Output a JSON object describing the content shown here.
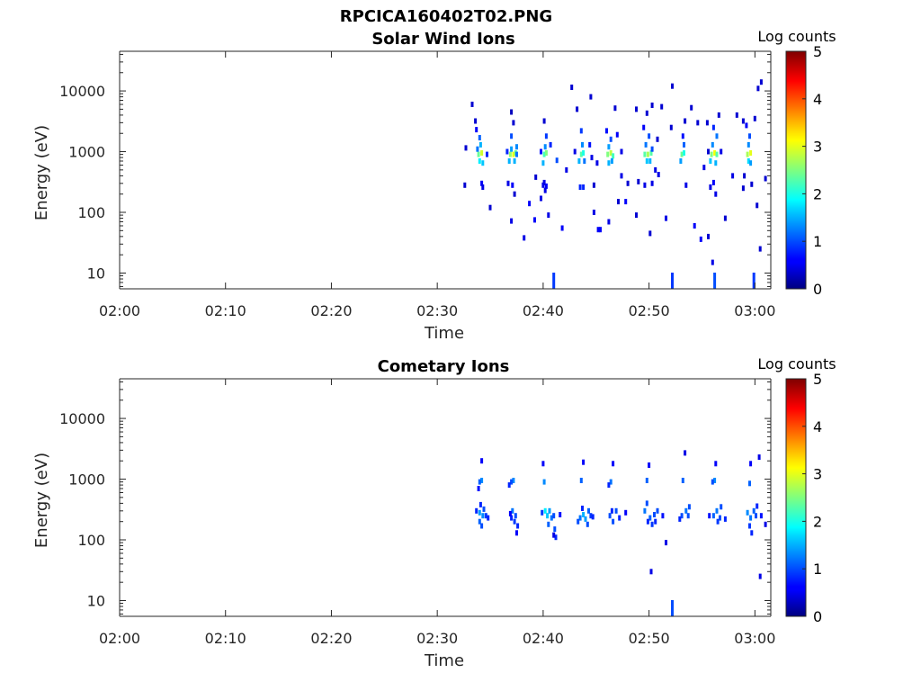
{
  "figure": {
    "filename": "RPCICA160402T02.PNG"
  },
  "chart_data": [
    {
      "type": "heatmap",
      "title": "Solar Wind Ions",
      "xlabel": "Time",
      "ylabel": "Energy (eV)",
      "x_ticks": [
        "02:00",
        "02:10",
        "02:20",
        "02:30",
        "02:40",
        "02:50",
        "03:00"
      ],
      "x_tick_minutes": [
        0,
        10,
        20,
        30,
        40,
        50,
        60
      ],
      "xlim_minutes": [
        0,
        61.5
      ],
      "y_scale": "log",
      "y_ticks": [
        "10",
        "100",
        "1000",
        "10000"
      ],
      "y_tick_values": [
        10,
        100,
        1000,
        10000
      ],
      "ylim": [
        5.5,
        45000
      ],
      "colorbar": {
        "label": "Log counts",
        "ticks": [
          "0",
          "1",
          "2",
          "3",
          "4",
          "5"
        ],
        "range": [
          0,
          5
        ],
        "colormap": "jet"
      },
      "points": [
        [
          33.9,
          900,
          2.4
        ],
        [
          34.2,
          950,
          2.9
        ],
        [
          34.0,
          700,
          1.8
        ],
        [
          34.3,
          650,
          1.6
        ],
        [
          33.8,
          1100,
          1.2
        ],
        [
          34.1,
          1300,
          1.5
        ],
        [
          34.0,
          1700,
          1.1
        ],
        [
          33.7,
          2300,
          0.6
        ],
        [
          34.2,
          300,
          0.6
        ],
        [
          34.3,
          260,
          0.5
        ],
        [
          32.6,
          280,
          0.4
        ],
        [
          32.7,
          1150,
          0.4
        ],
        [
          33.3,
          6000,
          0.4
        ],
        [
          33.6,
          3200,
          0.4
        ],
        [
          34.7,
          900,
          0.8
        ],
        [
          36.9,
          900,
          2.6
        ],
        [
          37.2,
          900,
          3.0
        ],
        [
          37.4,
          950,
          2.4
        ],
        [
          36.8,
          700,
          1.5
        ],
        [
          37.3,
          700,
          1.5
        ],
        [
          37.0,
          1100,
          1.4
        ],
        [
          37.5,
          1200,
          1.3
        ],
        [
          36.6,
          1000,
          0.8
        ],
        [
          37.0,
          1800,
          1.0
        ],
        [
          37.1,
          280,
          0.6
        ],
        [
          36.7,
          300,
          0.5
        ],
        [
          37.2,
          3000,
          0.4
        ],
        [
          37.3,
          200,
          0.4
        ],
        [
          37.0,
          4500,
          0.3
        ],
        [
          37.5,
          900,
          1.2
        ],
        [
          40.1,
          900,
          2.2
        ],
        [
          40.3,
          950,
          2.5
        ],
        [
          40.0,
          650,
          1.5
        ],
        [
          40.2,
          1200,
          1.3
        ],
        [
          40.3,
          1800,
          0.9
        ],
        [
          39.8,
          1000,
          0.7
        ],
        [
          40.1,
          3200,
          0.4
        ],
        [
          40.3,
          270,
          0.6
        ],
        [
          40.1,
          310,
          0.5
        ],
        [
          41.3,
          720,
          1.0
        ],
        [
          40.7,
          1300,
          0.8
        ],
        [
          39.3,
          380,
          0.4
        ],
        [
          40.0,
          280,
          0.5
        ],
        [
          40.2,
          230,
          0.5
        ],
        [
          39.8,
          170,
          0.5
        ],
        [
          43.6,
          900,
          2.3
        ],
        [
          43.8,
          950,
          2.0
        ],
        [
          43.4,
          700,
          1.5
        ],
        [
          43.7,
          1300,
          1.3
        ],
        [
          43.6,
          2200,
          0.9
        ],
        [
          43.9,
          700,
          1.2
        ],
        [
          43.5,
          260,
          0.8
        ],
        [
          43.8,
          260,
          0.8
        ],
        [
          44.4,
          1300,
          0.7
        ],
        [
          43.0,
          1000,
          0.5
        ],
        [
          45.1,
          650,
          0.5
        ],
        [
          44.6,
          800,
          0.5
        ],
        [
          46.1,
          900,
          2.5
        ],
        [
          46.4,
          950,
          2.8
        ],
        [
          46.6,
          850,
          2.2
        ],
        [
          46.2,
          650,
          1.5
        ],
        [
          46.5,
          700,
          1.4
        ],
        [
          46.2,
          1200,
          1.4
        ],
        [
          46.4,
          1600,
          1.0
        ],
        [
          46.0,
          2200,
          0.7
        ],
        [
          47.0,
          1900,
          0.6
        ],
        [
          47.4,
          1000,
          0.5
        ],
        [
          49.6,
          900,
          2.3
        ],
        [
          49.9,
          900,
          2.7
        ],
        [
          50.2,
          950,
          2.3
        ],
        [
          49.8,
          700,
          1.6
        ],
        [
          50.1,
          700,
          1.5
        ],
        [
          49.7,
          1300,
          1.2
        ],
        [
          50.0,
          1800,
          1.0
        ],
        [
          49.5,
          2500,
          0.6
        ],
        [
          50.3,
          1100,
          1.0
        ],
        [
          49.8,
          4300,
          0.4
        ],
        [
          49.6,
          280,
          0.5
        ],
        [
          50.3,
          300,
          0.5
        ],
        [
          50.6,
          500,
          0.5
        ],
        [
          50.9,
          420,
          0.5
        ],
        [
          53.1,
          900,
          2.4
        ],
        [
          53.3,
          950,
          2.0
        ],
        [
          53.0,
          700,
          1.4
        ],
        [
          53.3,
          1300,
          1.1
        ],
        [
          53.2,
          1800,
          0.7
        ],
        [
          53.5,
          280,
          0.5
        ],
        [
          53.4,
          3200,
          0.4
        ],
        [
          55.9,
          900,
          2.5
        ],
        [
          56.2,
          950,
          3.1
        ],
        [
          56.4,
          900,
          2.3
        ],
        [
          55.8,
          700,
          1.6
        ],
        [
          56.3,
          650,
          1.5
        ],
        [
          56.0,
          1300,
          1.3
        ],
        [
          56.4,
          1800,
          1.2
        ],
        [
          56.1,
          2500,
          0.8
        ],
        [
          56.6,
          4000,
          0.4
        ],
        [
          55.8,
          260,
          0.5
        ],
        [
          56.3,
          200,
          0.5
        ],
        [
          56.1,
          310,
          0.6
        ],
        [
          55.2,
          550,
          0.5
        ],
        [
          56.8,
          1000,
          0.5
        ],
        [
          55.5,
          3000,
          0.4
        ],
        [
          59.3,
          900,
          2.7
        ],
        [
          59.6,
          950,
          3.0
        ],
        [
          59.4,
          700,
          1.7
        ],
        [
          59.6,
          650,
          1.4
        ],
        [
          59.4,
          1300,
          1.3
        ],
        [
          59.5,
          1800,
          1.0
        ],
        [
          59.2,
          2700,
          0.6
        ],
        [
          59.0,
          400,
          0.4
        ],
        [
          59.7,
          290,
          0.4
        ],
        [
          58.9,
          3200,
          0.4
        ],
        [
          60.0,
          3500,
          0.4
        ],
        [
          60.3,
          11000,
          0.4
        ],
        [
          60.6,
          14000,
          0.4
        ],
        [
          61.0,
          360,
          0.4
        ],
        [
          35.0,
          120,
          0.4
        ],
        [
          38.7,
          140,
          0.6
        ],
        [
          39.2,
          75,
          0.6
        ],
        [
          40.5,
          90,
          0.5
        ],
        [
          41.8,
          55,
          0.6
        ],
        [
          44.8,
          100,
          0.5
        ],
        [
          45.2,
          52,
          0.6
        ],
        [
          45.4,
          52,
          0.6
        ],
        [
          46.2,
          70,
          0.5
        ],
        [
          47.8,
          150,
          0.6
        ],
        [
          48.8,
          90,
          0.4
        ],
        [
          50.1,
          45,
          0.4
        ],
        [
          51.6,
          80,
          0.5
        ],
        [
          54.3,
          60,
          0.6
        ],
        [
          54.9,
          36,
          0.6
        ],
        [
          55.6,
          40,
          0.4
        ],
        [
          56.0,
          15,
          0.5
        ],
        [
          57.2,
          80,
          0.4
        ],
        [
          60.2,
          130,
          0.4
        ],
        [
          60.5,
          25,
          0.4
        ],
        [
          38.2,
          38,
          0.5
        ],
        [
          37.0,
          72,
          0.5
        ],
        [
          42.2,
          500,
          0.5
        ],
        [
          44.8,
          280,
          0.4
        ],
        [
          47.1,
          150,
          0.4
        ],
        [
          47.4,
          400,
          0.5
        ],
        [
          48.0,
          300,
          0.4
        ],
        [
          49.0,
          320,
          0.4
        ],
        [
          50.8,
          1600,
          0.4
        ],
        [
          51.2,
          5500,
          0.4
        ],
        [
          52.2,
          12000,
          0.4
        ],
        [
          54.6,
          3000,
          0.4
        ],
        [
          55.6,
          1000,
          0.4
        ],
        [
          58.3,
          4000,
          0.4
        ],
        [
          57.9,
          400,
          0.5
        ],
        [
          58.9,
          250,
          0.4
        ],
        [
          42.7,
          11500,
          0.4
        ],
        [
          43.2,
          5000,
          0.4
        ],
        [
          44.5,
          8000,
          0.4
        ],
        [
          46.8,
          5200,
          0.4
        ],
        [
          48.8,
          5000,
          0.4
        ],
        [
          50.3,
          5800,
          0.4
        ],
        [
          52.1,
          2500,
          0.4
        ],
        [
          54.0,
          5300,
          0.4
        ],
        [
          41.0,
          10,
          0.9
        ],
        [
          52.2,
          10,
          0.9
        ],
        [
          56.2,
          10,
          1.0
        ],
        [
          59.9,
          10,
          0.9
        ]
      ]
    },
    {
      "type": "heatmap",
      "title": "Cometary Ions",
      "xlabel": "Time",
      "ylabel": "Energy (eV)",
      "x_ticks": [
        "02:00",
        "02:10",
        "02:20",
        "02:30",
        "02:40",
        "02:50",
        "03:00"
      ],
      "x_tick_minutes": [
        0,
        10,
        20,
        30,
        40,
        50,
        60
      ],
      "xlim_minutes": [
        0,
        61.5
      ],
      "y_scale": "log",
      "y_ticks": [
        "10",
        "100",
        "1000",
        "10000"
      ],
      "y_tick_values": [
        10,
        100,
        1000,
        10000
      ],
      "ylim": [
        5.5,
        45000
      ],
      "colorbar": {
        "label": "Log counts",
        "ticks": [
          "0",
          "1",
          "2",
          "3",
          "4",
          "5"
        ],
        "range": [
          0,
          5
        ],
        "colormap": "jet"
      },
      "points": [
        [
          34.2,
          950,
          1.3
        ],
        [
          34.0,
          900,
          1.1
        ],
        [
          33.9,
          700,
          0.7
        ],
        [
          34.2,
          2000,
          0.6
        ],
        [
          34.0,
          280,
          1.4
        ],
        [
          34.3,
          250,
          1.3
        ],
        [
          34.0,
          200,
          1.1
        ],
        [
          34.2,
          170,
          1.0
        ],
        [
          34.4,
          320,
          1.0
        ],
        [
          34.6,
          250,
          0.9
        ],
        [
          34.8,
          230,
          0.8
        ],
        [
          33.7,
          300,
          0.8
        ],
        [
          34.1,
          380,
          0.8
        ],
        [
          37.2,
          950,
          1.3
        ],
        [
          37.0,
          900,
          1.0
        ],
        [
          36.8,
          800,
          0.8
        ],
        [
          37.1,
          300,
          1.2
        ],
        [
          37.4,
          250,
          1.0
        ],
        [
          37.3,
          200,
          0.9
        ],
        [
          37.6,
          170,
          0.8
        ],
        [
          37.0,
          230,
          0.8
        ],
        [
          37.5,
          130,
          0.6
        ],
        [
          36.9,
          270,
          0.6
        ],
        [
          40.1,
          900,
          1.3
        ],
        [
          40.0,
          1800,
          0.6
        ],
        [
          40.2,
          300,
          1.8
        ],
        [
          40.4,
          250,
          1.6
        ],
        [
          40.6,
          300,
          1.4
        ],
        [
          40.8,
          230,
          1.2
        ],
        [
          40.5,
          180,
          1.1
        ],
        [
          41.1,
          150,
          1.0
        ],
        [
          41.2,
          110,
          0.8
        ],
        [
          41.0,
          250,
          1.0
        ],
        [
          39.9,
          280,
          0.9
        ],
        [
          41.6,
          260,
          0.7
        ],
        [
          43.6,
          950,
          1.1
        ],
        [
          43.8,
          1900,
          0.6
        ],
        [
          43.5,
          230,
          1.2
        ],
        [
          43.8,
          260,
          1.5
        ],
        [
          44.0,
          220,
          1.4
        ],
        [
          44.3,
          300,
          1.1
        ],
        [
          44.5,
          250,
          0.9
        ],
        [
          43.3,
          200,
          1.0
        ],
        [
          44.2,
          180,
          1.0
        ],
        [
          43.7,
          330,
          0.8
        ],
        [
          44.7,
          240,
          0.8
        ],
        [
          46.4,
          900,
          1.2
        ],
        [
          46.6,
          1800,
          0.6
        ],
        [
          46.2,
          800,
          0.8
        ],
        [
          46.3,
          250,
          1.0
        ],
        [
          46.6,
          200,
          1.0
        ],
        [
          46.9,
          300,
          1.0
        ],
        [
          46.5,
          300,
          0.8
        ],
        [
          47.2,
          230,
          0.8
        ],
        [
          47.8,
          280,
          0.6
        ],
        [
          49.8,
          950,
          1.1
        ],
        [
          50.0,
          1700,
          0.6
        ],
        [
          49.6,
          300,
          1.2
        ],
        [
          49.8,
          400,
          1.0
        ],
        [
          50.1,
          230,
          1.1
        ],
        [
          50.5,
          260,
          1.0
        ],
        [
          50.8,
          300,
          1.0
        ],
        [
          50.3,
          180,
          0.9
        ],
        [
          49.9,
          200,
          0.8
        ],
        [
          50.6,
          200,
          0.8
        ],
        [
          51.3,
          250,
          0.7
        ],
        [
          53.2,
          950,
          1.1
        ],
        [
          53.1,
          250,
          1.0
        ],
        [
          53.5,
          300,
          1.2
        ],
        [
          53.8,
          350,
          1.0
        ],
        [
          53.7,
          250,
          1.0
        ],
        [
          52.9,
          220,
          0.8
        ],
        [
          53.4,
          2700,
          0.5
        ],
        [
          56.2,
          950,
          1.3
        ],
        [
          56.0,
          900,
          1.0
        ],
        [
          56.3,
          1800,
          0.6
        ],
        [
          56.1,
          250,
          1.1
        ],
        [
          56.4,
          300,
          1.2
        ],
        [
          56.7,
          230,
          1.0
        ],
        [
          56.5,
          200,
          0.9
        ],
        [
          56.8,
          350,
          1.0
        ],
        [
          57.2,
          220,
          0.8
        ],
        [
          55.7,
          250,
          0.7
        ],
        [
          59.5,
          850,
          1.1
        ],
        [
          59.6,
          1800,
          0.6
        ],
        [
          59.3,
          280,
          1.3
        ],
        [
          59.6,
          230,
          1.2
        ],
        [
          59.9,
          300,
          1.1
        ],
        [
          60.1,
          250,
          1.0
        ],
        [
          59.5,
          170,
          0.9
        ],
        [
          59.7,
          130,
          0.8
        ],
        [
          60.4,
          2300,
          0.5
        ],
        [
          60.2,
          360,
          0.8
        ],
        [
          60.6,
          250,
          0.7
        ],
        [
          51.6,
          90,
          0.5
        ],
        [
          50.2,
          30,
          0.5
        ],
        [
          60.5,
          25,
          0.5
        ],
        [
          41.0,
          120,
          0.5
        ],
        [
          61.0,
          180,
          0.5
        ],
        [
          52.2,
          7,
          1.0
        ]
      ]
    }
  ]
}
